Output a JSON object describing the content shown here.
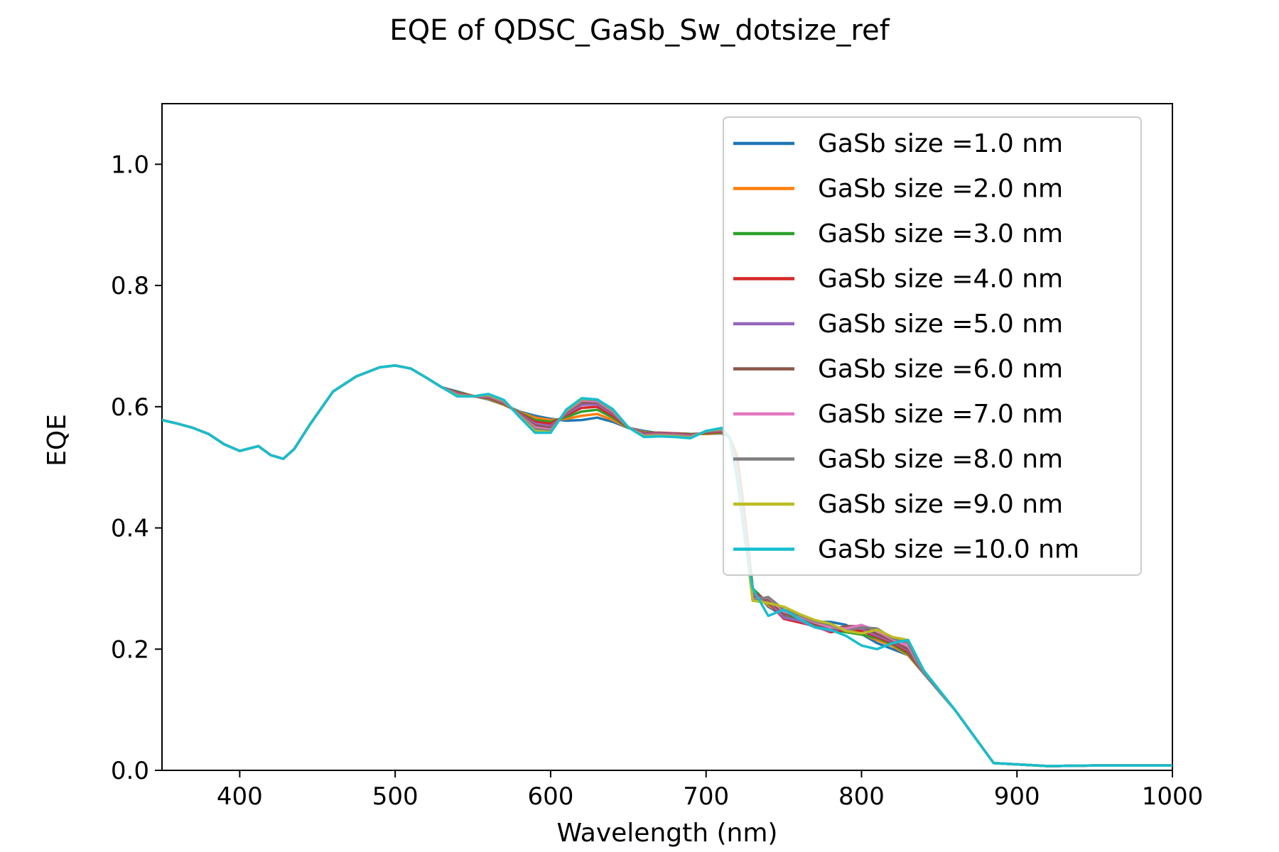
{
  "chart_data": {
    "type": "line",
    "title": "EQE of  QDSC_GaSb_Sw_dotsize_ref",
    "xlabel": "Wavelength (nm)",
    "ylabel": "EQE",
    "xlim": [
      350,
      1000
    ],
    "ylim": [
      0,
      1.1
    ],
    "xticks": [
      400,
      500,
      600,
      700,
      800,
      900,
      1000
    ],
    "xtick_labels": [
      "400",
      "500",
      "600",
      "700",
      "800",
      "900",
      "1000"
    ],
    "yticks": [
      0.0,
      0.2,
      0.4,
      0.6,
      0.8,
      1.0
    ],
    "ytick_labels": [
      "0.0",
      "0.2",
      "0.4",
      "0.6",
      "0.8",
      "1.0"
    ],
    "grid": false,
    "legend_position": "top-right",
    "colors": [
      "#1f77b4",
      "#ff7f0e",
      "#2ca02c",
      "#d62728",
      "#9467bd",
      "#8c564b",
      "#e377c2",
      "#7f7f7f",
      "#bcbd22",
      "#17becf"
    ],
    "series": [
      {
        "name": "GaSb size =1.0 nm",
        "x": [
          350,
          360,
          370,
          380,
          390,
          400,
          412,
          420,
          428,
          435,
          445,
          460,
          475,
          490,
          500,
          510,
          520,
          530,
          540,
          550,
          560,
          570,
          580,
          590,
          600,
          610,
          620,
          630,
          640,
          650,
          660,
          670,
          680,
          690,
          700,
          710,
          715,
          720,
          725,
          730,
          740,
          750,
          760,
          770,
          780,
          790,
          800,
          810,
          820,
          830,
          840,
          860,
          885,
          920,
          950,
          1000
        ],
        "y": [
          0.578,
          0.572,
          0.565,
          0.555,
          0.538,
          0.527,
          0.535,
          0.52,
          0.514,
          0.53,
          0.57,
          0.625,
          0.65,
          0.665,
          0.668,
          0.663,
          0.648,
          0.632,
          0.625,
          0.618,
          0.612,
          0.603,
          0.592,
          0.585,
          0.58,
          0.577,
          0.578,
          0.582,
          0.575,
          0.565,
          0.56,
          0.556,
          0.556,
          0.555,
          0.555,
          0.556,
          0.55,
          0.52,
          0.42,
          0.3,
          0.27,
          0.255,
          0.25,
          0.245,
          0.245,
          0.24,
          0.225,
          0.21,
          0.2,
          0.19,
          0.16,
          0.1,
          0.012,
          0.007,
          0.008,
          0.008
        ]
      },
      {
        "name": "GaSb size =2.0 nm",
        "x": [
          350,
          360,
          370,
          380,
          390,
          400,
          412,
          420,
          428,
          435,
          445,
          460,
          475,
          490,
          500,
          510,
          520,
          530,
          540,
          550,
          560,
          570,
          580,
          590,
          600,
          610,
          620,
          630,
          640,
          650,
          660,
          670,
          680,
          690,
          700,
          710,
          715,
          720,
          725,
          730,
          740,
          750,
          760,
          770,
          780,
          790,
          800,
          810,
          820,
          830,
          840,
          860,
          885,
          920,
          950,
          1000
        ],
        "y": [
          0.578,
          0.572,
          0.565,
          0.555,
          0.538,
          0.527,
          0.535,
          0.52,
          0.514,
          0.53,
          0.57,
          0.625,
          0.65,
          0.665,
          0.668,
          0.663,
          0.648,
          0.632,
          0.624,
          0.618,
          0.613,
          0.603,
          0.591,
          0.582,
          0.578,
          0.58,
          0.585,
          0.588,
          0.578,
          0.565,
          0.558,
          0.556,
          0.556,
          0.555,
          0.555,
          0.557,
          0.55,
          0.52,
          0.42,
          0.3,
          0.272,
          0.258,
          0.248,
          0.243,
          0.238,
          0.232,
          0.225,
          0.215,
          0.205,
          0.19,
          0.16,
          0.1,
          0.012,
          0.007,
          0.008,
          0.008
        ]
      },
      {
        "name": "GaSb size =3.0 nm",
        "x": [
          350,
          360,
          370,
          380,
          390,
          400,
          412,
          420,
          428,
          435,
          445,
          460,
          475,
          490,
          500,
          510,
          520,
          530,
          540,
          550,
          560,
          570,
          580,
          590,
          600,
          610,
          620,
          630,
          640,
          650,
          660,
          670,
          680,
          690,
          700,
          710,
          715,
          720,
          725,
          730,
          740,
          750,
          760,
          770,
          780,
          790,
          800,
          810,
          820,
          830,
          840,
          860,
          885,
          920,
          950,
          1000
        ],
        "y": [
          0.578,
          0.572,
          0.565,
          0.555,
          0.538,
          0.527,
          0.535,
          0.52,
          0.514,
          0.53,
          0.57,
          0.625,
          0.65,
          0.665,
          0.668,
          0.663,
          0.648,
          0.632,
          0.624,
          0.617,
          0.614,
          0.604,
          0.59,
          0.578,
          0.575,
          0.583,
          0.592,
          0.595,
          0.582,
          0.565,
          0.557,
          0.557,
          0.556,
          0.555,
          0.556,
          0.558,
          0.55,
          0.515,
          0.415,
          0.3,
          0.275,
          0.26,
          0.246,
          0.24,
          0.232,
          0.228,
          0.224,
          0.218,
          0.208,
          0.192,
          0.16,
          0.1,
          0.012,
          0.007,
          0.008,
          0.008
        ]
      },
      {
        "name": "GaSb size =4.0 nm",
        "x": [
          350,
          360,
          370,
          380,
          390,
          400,
          412,
          420,
          428,
          435,
          445,
          460,
          475,
          490,
          500,
          510,
          520,
          530,
          540,
          550,
          560,
          570,
          580,
          590,
          600,
          610,
          620,
          630,
          640,
          650,
          660,
          670,
          680,
          690,
          700,
          710,
          715,
          720,
          725,
          730,
          740,
          750,
          760,
          770,
          780,
          790,
          800,
          810,
          820,
          830,
          840,
          860,
          885,
          920,
          950,
          1000
        ],
        "y": [
          0.578,
          0.572,
          0.565,
          0.555,
          0.538,
          0.527,
          0.535,
          0.52,
          0.514,
          0.53,
          0.57,
          0.625,
          0.65,
          0.665,
          0.668,
          0.663,
          0.648,
          0.632,
          0.623,
          0.617,
          0.615,
          0.605,
          0.589,
          0.575,
          0.572,
          0.586,
          0.598,
          0.6,
          0.585,
          0.566,
          0.556,
          0.557,
          0.556,
          0.554,
          0.557,
          0.559,
          0.55,
          0.51,
          0.41,
          0.295,
          0.278,
          0.25,
          0.244,
          0.238,
          0.228,
          0.232,
          0.23,
          0.22,
          0.21,
          0.195,
          0.16,
          0.1,
          0.012,
          0.007,
          0.008,
          0.008
        ]
      },
      {
        "name": "GaSb size =5.0 nm",
        "x": [
          350,
          360,
          370,
          380,
          390,
          400,
          412,
          420,
          428,
          435,
          445,
          460,
          475,
          490,
          500,
          510,
          520,
          530,
          540,
          550,
          560,
          570,
          580,
          590,
          600,
          610,
          620,
          630,
          640,
          650,
          660,
          670,
          680,
          690,
          700,
          710,
          715,
          720,
          725,
          730,
          740,
          750,
          760,
          770,
          780,
          790,
          800,
          810,
          820,
          830,
          840,
          860,
          885,
          920,
          950,
          1000
        ],
        "y": [
          0.578,
          0.572,
          0.565,
          0.555,
          0.538,
          0.527,
          0.535,
          0.52,
          0.514,
          0.53,
          0.57,
          0.625,
          0.65,
          0.665,
          0.668,
          0.663,
          0.648,
          0.632,
          0.622,
          0.617,
          0.616,
          0.606,
          0.588,
          0.572,
          0.568,
          0.588,
          0.603,
          0.604,
          0.588,
          0.566,
          0.555,
          0.556,
          0.555,
          0.553,
          0.558,
          0.56,
          0.55,
          0.505,
          0.405,
          0.29,
          0.28,
          0.252,
          0.247,
          0.236,
          0.23,
          0.236,
          0.234,
          0.222,
          0.212,
          0.198,
          0.16,
          0.1,
          0.012,
          0.007,
          0.008,
          0.008
        ]
      },
      {
        "name": "GaSb size =6.0 nm",
        "x": [
          350,
          360,
          370,
          380,
          390,
          400,
          412,
          420,
          428,
          435,
          445,
          460,
          475,
          490,
          500,
          510,
          520,
          530,
          540,
          550,
          560,
          570,
          580,
          590,
          600,
          610,
          620,
          630,
          640,
          650,
          660,
          670,
          680,
          690,
          700,
          710,
          715,
          720,
          725,
          730,
          740,
          750,
          760,
          770,
          780,
          790,
          800,
          810,
          820,
          830,
          840,
          860,
          885,
          920,
          950,
          1000
        ],
        "y": [
          0.578,
          0.572,
          0.565,
          0.555,
          0.538,
          0.527,
          0.535,
          0.52,
          0.514,
          0.53,
          0.57,
          0.625,
          0.65,
          0.665,
          0.668,
          0.663,
          0.648,
          0.632,
          0.621,
          0.617,
          0.617,
          0.607,
          0.587,
          0.569,
          0.565,
          0.59,
          0.607,
          0.607,
          0.59,
          0.566,
          0.554,
          0.555,
          0.554,
          0.552,
          0.558,
          0.561,
          0.55,
          0.5,
          0.4,
          0.285,
          0.282,
          0.258,
          0.252,
          0.24,
          0.232,
          0.238,
          0.238,
          0.225,
          0.214,
          0.2,
          0.16,
          0.1,
          0.012,
          0.007,
          0.008,
          0.008
        ]
      },
      {
        "name": "GaSb size =7.0 nm",
        "x": [
          350,
          360,
          370,
          380,
          390,
          400,
          412,
          420,
          428,
          435,
          445,
          460,
          475,
          490,
          500,
          510,
          520,
          530,
          540,
          550,
          560,
          570,
          580,
          590,
          600,
          610,
          620,
          630,
          640,
          650,
          660,
          670,
          680,
          690,
          700,
          710,
          715,
          720,
          725,
          730,
          740,
          750,
          760,
          770,
          780,
          790,
          800,
          810,
          820,
          830,
          840,
          860,
          885,
          920,
          950,
          1000
        ],
        "y": [
          0.578,
          0.572,
          0.565,
          0.555,
          0.538,
          0.527,
          0.535,
          0.52,
          0.514,
          0.53,
          0.57,
          0.625,
          0.65,
          0.665,
          0.668,
          0.663,
          0.648,
          0.632,
          0.62,
          0.617,
          0.618,
          0.608,
          0.586,
          0.566,
          0.562,
          0.592,
          0.61,
          0.609,
          0.592,
          0.566,
          0.553,
          0.554,
          0.553,
          0.551,
          0.559,
          0.562,
          0.55,
          0.495,
          0.395,
          0.282,
          0.285,
          0.262,
          0.254,
          0.244,
          0.236,
          0.234,
          0.24,
          0.23,
          0.216,
          0.205,
          0.16,
          0.1,
          0.012,
          0.007,
          0.008,
          0.008
        ]
      },
      {
        "name": "GaSb size =8.0 nm",
        "x": [
          350,
          360,
          370,
          380,
          390,
          400,
          412,
          420,
          428,
          435,
          445,
          460,
          475,
          490,
          500,
          510,
          520,
          530,
          540,
          550,
          560,
          570,
          580,
          590,
          600,
          610,
          620,
          630,
          640,
          650,
          660,
          670,
          680,
          690,
          700,
          710,
          715,
          720,
          725,
          730,
          740,
          750,
          760,
          770,
          780,
          790,
          800,
          810,
          820,
          830,
          840,
          860,
          885,
          920,
          950,
          1000
        ],
        "y": [
          0.578,
          0.572,
          0.565,
          0.555,
          0.538,
          0.527,
          0.535,
          0.52,
          0.514,
          0.53,
          0.57,
          0.625,
          0.65,
          0.665,
          0.668,
          0.663,
          0.648,
          0.632,
          0.619,
          0.617,
          0.619,
          0.609,
          0.585,
          0.563,
          0.56,
          0.593,
          0.612,
          0.611,
          0.594,
          0.566,
          0.552,
          0.553,
          0.552,
          0.55,
          0.559,
          0.563,
          0.55,
          0.49,
          0.39,
          0.28,
          0.286,
          0.265,
          0.256,
          0.246,
          0.24,
          0.23,
          0.236,
          0.234,
          0.218,
          0.21,
          0.16,
          0.1,
          0.012,
          0.007,
          0.008,
          0.008
        ]
      },
      {
        "name": "GaSb size =9.0 nm",
        "x": [
          350,
          360,
          370,
          380,
          390,
          400,
          412,
          420,
          428,
          435,
          445,
          460,
          475,
          490,
          500,
          510,
          520,
          530,
          540,
          550,
          560,
          570,
          580,
          590,
          600,
          610,
          620,
          630,
          640,
          650,
          660,
          670,
          680,
          690,
          700,
          710,
          715,
          720,
          725,
          730,
          740,
          750,
          760,
          770,
          780,
          790,
          800,
          810,
          820,
          830,
          840,
          860,
          885,
          920,
          950,
          1000
        ],
        "y": [
          0.578,
          0.572,
          0.565,
          0.555,
          0.538,
          0.527,
          0.535,
          0.52,
          0.514,
          0.53,
          0.57,
          0.625,
          0.65,
          0.665,
          0.668,
          0.663,
          0.648,
          0.632,
          0.618,
          0.617,
          0.62,
          0.61,
          0.584,
          0.56,
          0.558,
          0.594,
          0.613,
          0.612,
          0.595,
          0.566,
          0.551,
          0.552,
          0.551,
          0.549,
          0.56,
          0.564,
          0.55,
          0.485,
          0.385,
          0.28,
          0.276,
          0.27,
          0.258,
          0.248,
          0.242,
          0.23,
          0.226,
          0.232,
          0.22,
          0.215,
          0.165,
          0.1,
          0.012,
          0.007,
          0.008,
          0.008
        ]
      },
      {
        "name": "GaSb size =10.0 nm",
        "x": [
          350,
          360,
          370,
          380,
          390,
          400,
          412,
          420,
          428,
          435,
          445,
          460,
          475,
          490,
          500,
          510,
          520,
          530,
          540,
          550,
          560,
          570,
          580,
          590,
          600,
          610,
          620,
          630,
          640,
          650,
          660,
          670,
          680,
          690,
          700,
          710,
          715,
          720,
          725,
          730,
          740,
          750,
          760,
          770,
          780,
          790,
          800,
          810,
          820,
          830,
          840,
          860,
          885,
          920,
          950,
          1000
        ],
        "y": [
          0.578,
          0.572,
          0.565,
          0.555,
          0.538,
          0.527,
          0.535,
          0.52,
          0.514,
          0.53,
          0.57,
          0.625,
          0.65,
          0.665,
          0.668,
          0.663,
          0.648,
          0.632,
          0.617,
          0.617,
          0.621,
          0.611,
          0.583,
          0.557,
          0.557,
          0.595,
          0.614,
          0.612,
          0.596,
          0.566,
          0.55,
          0.551,
          0.55,
          0.548,
          0.56,
          0.565,
          0.55,
          0.48,
          0.38,
          0.3,
          0.255,
          0.265,
          0.25,
          0.236,
          0.232,
          0.222,
          0.206,
          0.2,
          0.21,
          0.215,
          0.165,
          0.1,
          0.012,
          0.007,
          0.008,
          0.008
        ]
      }
    ]
  }
}
